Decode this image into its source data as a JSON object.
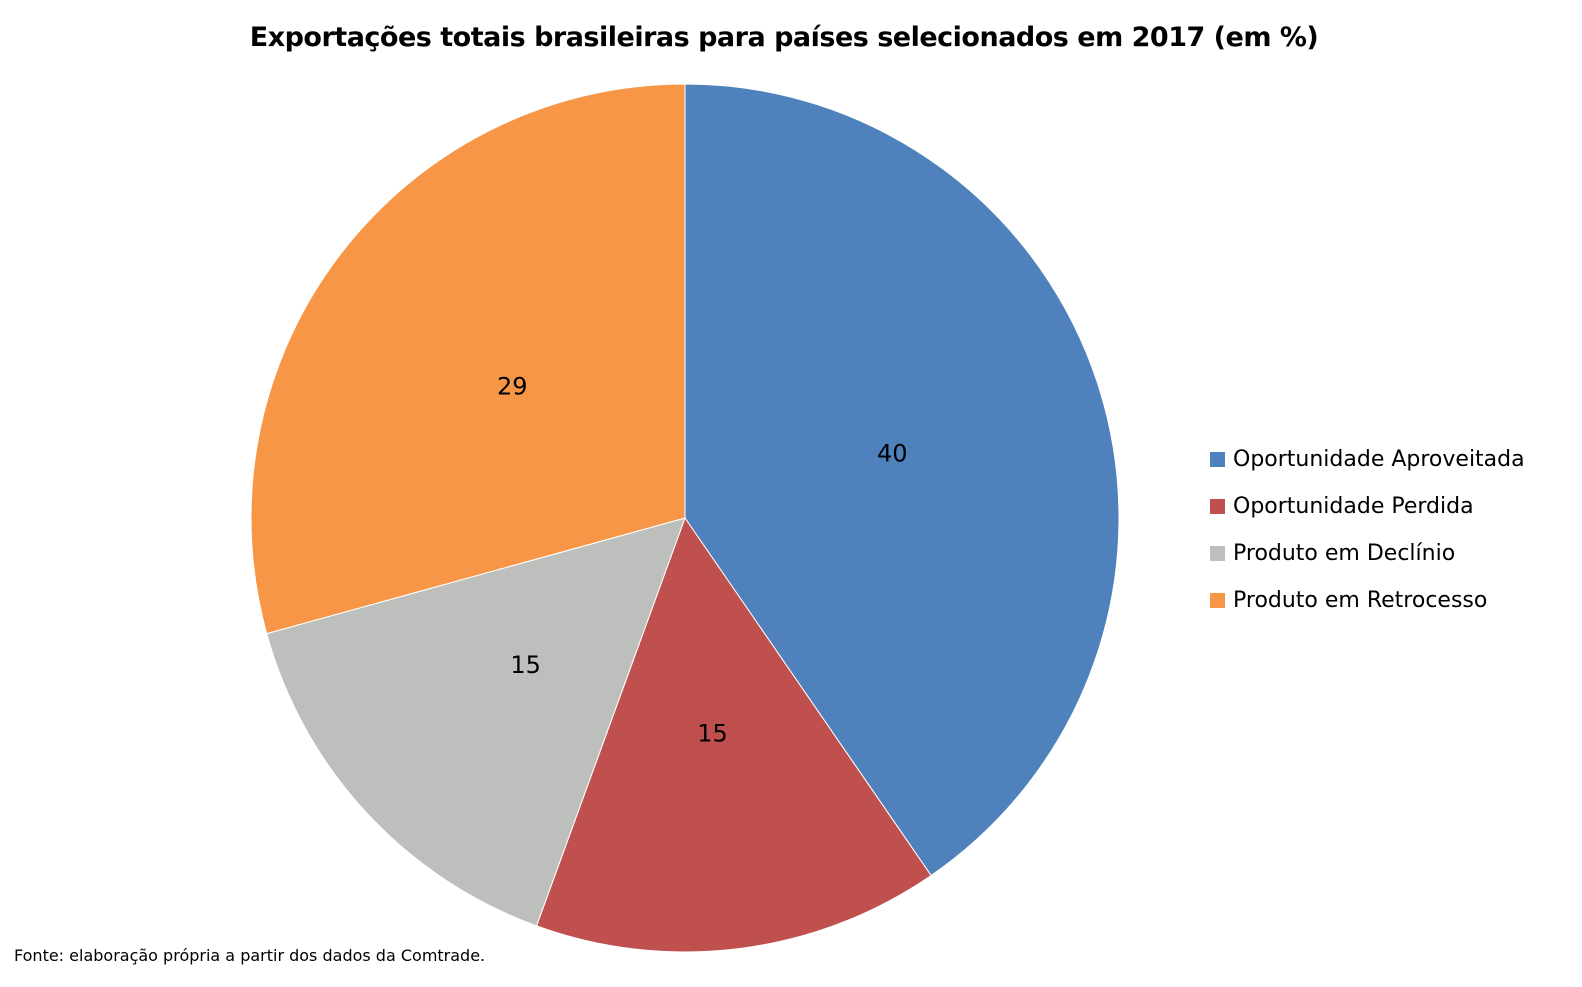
{
  "chart_data": {
    "type": "pie",
    "title": "Exportações totais brasileiras para países selecionados em 2017 (em %)",
    "categories": [
      "Oportunidade Aproveitada",
      "Oportunidade Perdida",
      "Produto em Declínio",
      "Produto em Retrocesso"
    ],
    "values": [
      40,
      15,
      15,
      29
    ],
    "data_labels": [
      "40",
      "15",
      "15",
      "29"
    ],
    "colors": [
      "#4F81BD",
      "#C0504D",
      "#BDBFBC",
      "#F79646"
    ],
    "legend_position": "right",
    "source": "Fonte: elaboração própria a partir dos dados da Comtrade."
  }
}
